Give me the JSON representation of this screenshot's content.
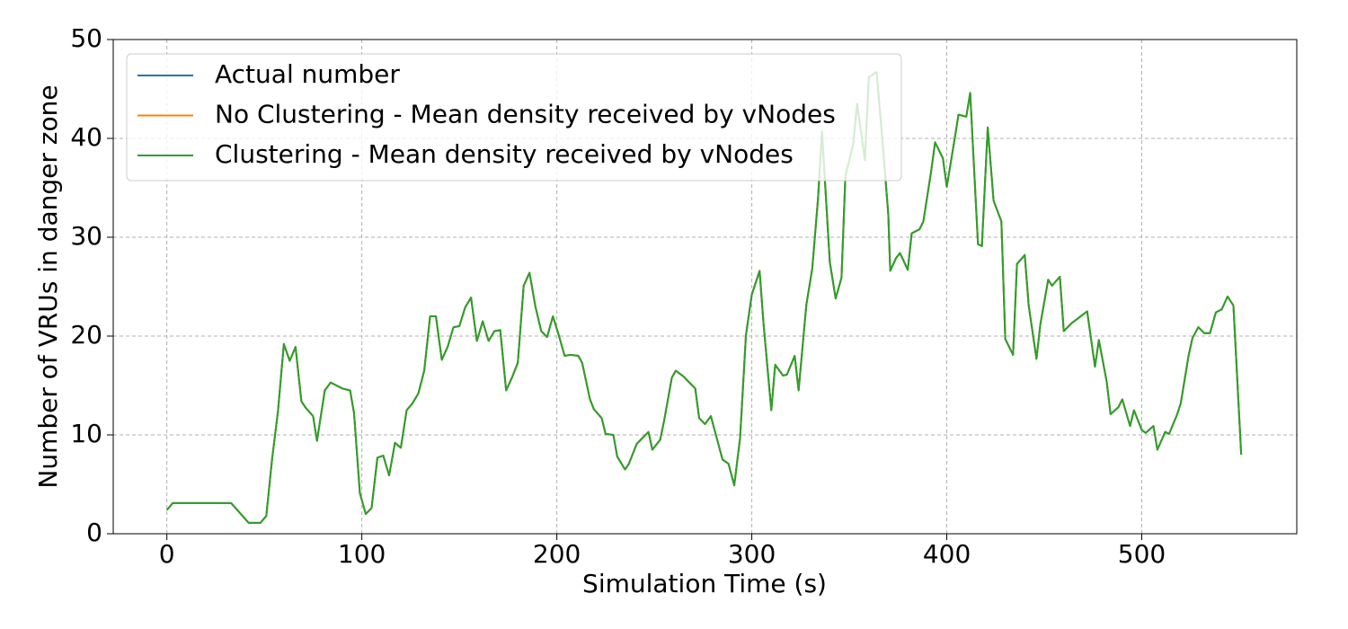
{
  "chart_data": {
    "type": "line",
    "x_label": "Simulation Time (s)",
    "y_label": "Number of VRUs in danger zone",
    "x": [
      0,
      3,
      33,
      42,
      48,
      51,
      54,
      57,
      60,
      63,
      66,
      69,
      71,
      75,
      77,
      81,
      84,
      87,
      90,
      94,
      96,
      99,
      102,
      105,
      108,
      111,
      114,
      117,
      120,
      123,
      126,
      129,
      132,
      135,
      138,
      141,
      144,
      147,
      150,
      153,
      156,
      159,
      162,
      165,
      168,
      171,
      174,
      177,
      180,
      183,
      186,
      189,
      192,
      195,
      198,
      201,
      204,
      207,
      211,
      213,
      217,
      219,
      223,
      225,
      229,
      231,
      235,
      237,
      241,
      243,
      247,
      249,
      253,
      255,
      259,
      261,
      265,
      267,
      271,
      273,
      276,
      279,
      282,
      285,
      288,
      291,
      294,
      297,
      300,
      304,
      306,
      310,
      312,
      316,
      318,
      322,
      324,
      328,
      331,
      334,
      336,
      340,
      343,
      346,
      348,
      352,
      354,
      358,
      360,
      364,
      367,
      370,
      371,
      374,
      376,
      380,
      382,
      386,
      388,
      392,
      394,
      398,
      400,
      404,
      406,
      410,
      412,
      416,
      418,
      421,
      424,
      428,
      430,
      434,
      436,
      440,
      442,
      446,
      448,
      452,
      454,
      458,
      460,
      464,
      466,
      470,
      472,
      476,
      478,
      482,
      484,
      488,
      490,
      494,
      496,
      500,
      502,
      506,
      508,
      512,
      514,
      518,
      520,
      524,
      526,
      529,
      532,
      535,
      538,
      541,
      544,
      547,
      551
    ],
    "series": [
      {
        "name": "Actual number",
        "color": "#1f77b4",
        "values": [
          2.4,
          3.1,
          3.1,
          1.1,
          1.1,
          1.8,
          7.6,
          12.4,
          19.2,
          17.5,
          18.9,
          13.4,
          12.8,
          11.9,
          9.4,
          14.5,
          15.3,
          15.0,
          14.7,
          14.5,
          12.2,
          4.1,
          2.0,
          2.6,
          7.7,
          7.9,
          5.9,
          9.2,
          8.7,
          12.5,
          13.2,
          14.2,
          16.5,
          22.0,
          22.0,
          17.6,
          18.9,
          20.9,
          21.0,
          22.9,
          23.9,
          19.5,
          21.5,
          19.5,
          20.5,
          20.6,
          14.5,
          15.8,
          17.3,
          25.1,
          26.4,
          23.0,
          20.5,
          19.9,
          22.0,
          20.1,
          18.0,
          18.1,
          18.0,
          17.3,
          13.6,
          12.6,
          11.7,
          10.1,
          10.0,
          7.8,
          6.5,
          7.1,
          9.1,
          9.5,
          10.3,
          8.5,
          9.5,
          11.4,
          15.8,
          16.5,
          15.9,
          15.5,
          14.7,
          11.7,
          11.1,
          11.9,
          9.7,
          7.5,
          7.1,
          4.9,
          9.7,
          20.1,
          24.2,
          26.6,
          21.3,
          12.5,
          17.1,
          16.0,
          16.1,
          18.0,
          14.5,
          23.2,
          26.8,
          34.0,
          40.7,
          27.5,
          23.8,
          25.9,
          36.2,
          39.4,
          43.5,
          37.8,
          46.2,
          46.7,
          39.8,
          32.3,
          26.6,
          27.9,
          28.4,
          26.7,
          30.4,
          30.8,
          31.6,
          36.7,
          39.6,
          38.0,
          35.1,
          39.9,
          42.4,
          42.2,
          44.6,
          29.3,
          29.1,
          41.1,
          33.7,
          31.6,
          19.7,
          18.1,
          27.3,
          28.2,
          23.1,
          17.7,
          21.2,
          25.7,
          25.1,
          26.0,
          20.5,
          21.3,
          21.6,
          22.2,
          22.5,
          16.9,
          19.6,
          15.4,
          12.1,
          12.8,
          13.6,
          10.9,
          12.5,
          10.5,
          10.2,
          10.9,
          8.5,
          10.3,
          10.1,
          12.0,
          13.2,
          18.0,
          19.8,
          20.9,
          20.3,
          20.3,
          22.4,
          22.7,
          24.0,
          23.1,
          8.0
        ]
      },
      {
        "name": "No Clustering - Mean density received by vNodes",
        "color": "#ff7f0e",
        "values": [
          2.4,
          3.1,
          3.1,
          1.1,
          1.1,
          1.8,
          7.6,
          12.4,
          19.2,
          17.5,
          18.9,
          13.4,
          12.8,
          11.9,
          9.4,
          14.5,
          15.3,
          15.0,
          14.7,
          14.5,
          12.2,
          4.1,
          2.0,
          2.6,
          7.7,
          7.9,
          5.9,
          9.2,
          8.7,
          12.5,
          13.2,
          14.2,
          16.5,
          22.0,
          22.0,
          17.6,
          18.9,
          20.9,
          21.0,
          22.9,
          23.9,
          19.5,
          21.5,
          19.5,
          20.5,
          20.6,
          14.5,
          15.8,
          17.3,
          25.1,
          26.4,
          23.0,
          20.5,
          19.9,
          22.0,
          20.1,
          18.0,
          18.1,
          18.0,
          17.3,
          13.6,
          12.6,
          11.7,
          10.1,
          10.0,
          7.8,
          6.5,
          7.1,
          9.1,
          9.5,
          10.3,
          8.5,
          9.5,
          11.4,
          15.8,
          16.5,
          15.9,
          15.5,
          14.7,
          11.7,
          11.1,
          11.9,
          9.7,
          7.5,
          7.1,
          4.9,
          9.7,
          20.1,
          24.2,
          26.6,
          21.3,
          12.5,
          17.1,
          16.0,
          16.1,
          18.0,
          14.5,
          23.2,
          26.8,
          34.0,
          40.7,
          27.5,
          23.8,
          25.9,
          36.2,
          39.4,
          43.5,
          37.8,
          46.2,
          46.7,
          39.8,
          32.3,
          26.6,
          27.9,
          28.4,
          26.7,
          30.4,
          30.8,
          31.6,
          36.7,
          39.6,
          38.0,
          35.1,
          39.9,
          42.4,
          42.2,
          44.6,
          29.3,
          29.1,
          41.1,
          33.7,
          31.6,
          19.7,
          18.1,
          27.3,
          28.2,
          23.1,
          17.7,
          21.2,
          25.7,
          25.1,
          26.0,
          20.5,
          21.3,
          21.6,
          22.2,
          22.5,
          16.9,
          19.6,
          15.4,
          12.1,
          12.8,
          13.6,
          10.9,
          12.5,
          10.5,
          10.2,
          10.9,
          8.5,
          10.3,
          10.1,
          12.0,
          13.2,
          18.0,
          19.8,
          20.9,
          20.3,
          20.3,
          22.4,
          22.7,
          24.0,
          23.1,
          8.0
        ]
      },
      {
        "name": "Clustering - Mean density received by vNodes",
        "color": "#2ca02c",
        "values": [
          2.4,
          3.1,
          3.1,
          1.1,
          1.1,
          1.8,
          7.6,
          12.4,
          19.2,
          17.5,
          18.9,
          13.4,
          12.8,
          11.9,
          9.4,
          14.5,
          15.3,
          15.0,
          14.7,
          14.5,
          12.2,
          4.1,
          2.0,
          2.6,
          7.7,
          7.9,
          5.9,
          9.2,
          8.7,
          12.5,
          13.2,
          14.2,
          16.5,
          22.0,
          22.0,
          17.6,
          18.9,
          20.9,
          21.0,
          22.9,
          23.9,
          19.5,
          21.5,
          19.5,
          20.5,
          20.6,
          14.5,
          15.8,
          17.3,
          25.1,
          26.4,
          23.0,
          20.5,
          19.9,
          22.0,
          20.1,
          18.0,
          18.1,
          18.0,
          17.3,
          13.6,
          12.6,
          11.7,
          10.1,
          10.0,
          7.8,
          6.5,
          7.1,
          9.1,
          9.5,
          10.3,
          8.5,
          9.5,
          11.4,
          15.8,
          16.5,
          15.9,
          15.5,
          14.7,
          11.7,
          11.1,
          11.9,
          9.7,
          7.5,
          7.1,
          4.9,
          9.7,
          20.1,
          24.2,
          26.6,
          21.3,
          12.5,
          17.1,
          16.0,
          16.1,
          18.0,
          14.5,
          23.2,
          26.8,
          34.0,
          40.7,
          27.5,
          23.8,
          25.9,
          36.2,
          39.4,
          43.5,
          37.8,
          46.2,
          46.7,
          39.8,
          32.3,
          26.6,
          27.9,
          28.4,
          26.7,
          30.4,
          30.8,
          31.6,
          36.7,
          39.6,
          38.0,
          35.1,
          39.9,
          42.4,
          42.2,
          44.6,
          29.3,
          29.1,
          41.1,
          33.7,
          31.6,
          19.7,
          18.1,
          27.3,
          28.2,
          23.1,
          17.7,
          21.2,
          25.7,
          25.1,
          26.0,
          20.5,
          21.3,
          21.6,
          22.2,
          22.5,
          16.9,
          19.6,
          15.4,
          12.1,
          12.8,
          13.6,
          10.9,
          12.5,
          10.5,
          10.2,
          10.9,
          8.5,
          10.3,
          10.1,
          12.0,
          13.2,
          18.0,
          19.8,
          20.9,
          20.3,
          20.3,
          22.4,
          22.7,
          24.0,
          23.1,
          8.0
        ]
      }
    ],
    "xlim": [
      -27.5,
      579.5
    ],
    "xticks": [
      0,
      100,
      200,
      300,
      400,
      500
    ],
    "ylim": [
      0,
      50
    ],
    "yticks": [
      0,
      10,
      20,
      30,
      40,
      50
    ],
    "grid": true,
    "legend": "upper left"
  }
}
